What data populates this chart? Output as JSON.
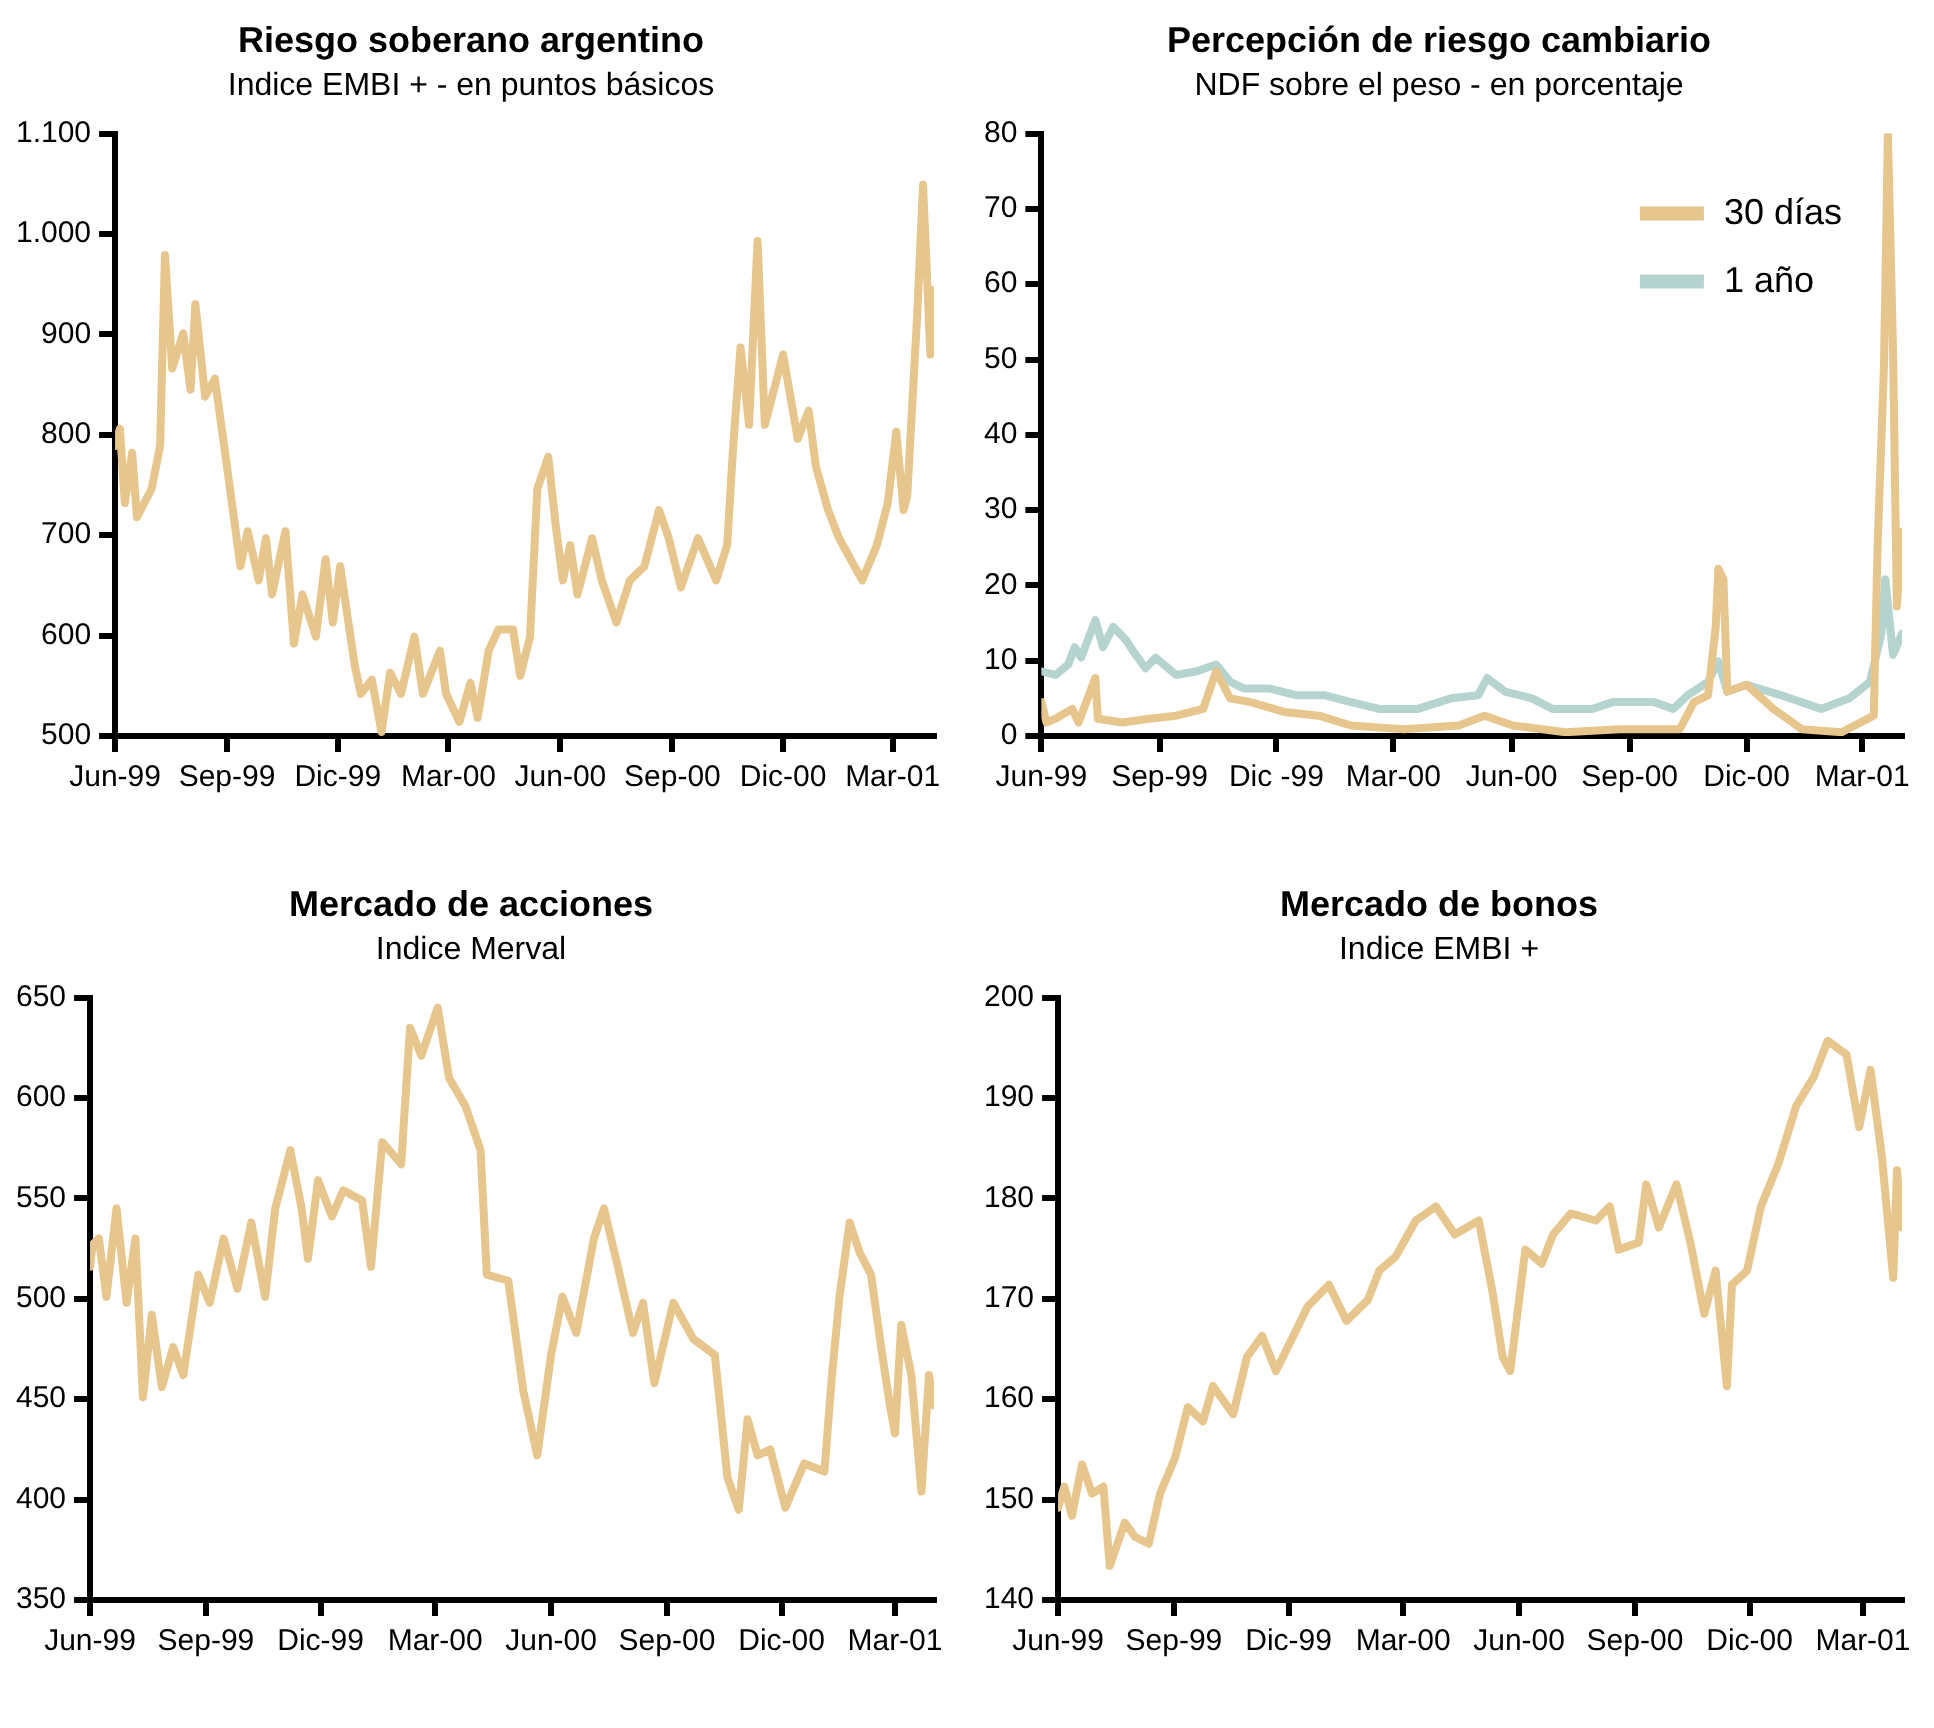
{
  "chart_data": [
    {
      "type": "line",
      "title": "Riesgo soberano argentino",
      "subtitle": "Indice EMBI + - en puntos básicos",
      "xlim": [
        "1999-06-01",
        "2001-04-04"
      ],
      "xticks": [
        {
          "value": "1999-06",
          "label": "Jun-99"
        },
        {
          "value": "1999-09",
          "label": "Sep-99"
        },
        {
          "value": "1999-12",
          "label": "Dic-99"
        },
        {
          "value": "2000-03",
          "label": "Mar-00"
        },
        {
          "value": "2000-06",
          "label": "Jun-00"
        },
        {
          "value": "2000-09",
          "label": "Sep-00"
        },
        {
          "value": "2000-12",
          "label": "Dic-00"
        },
        {
          "value": "2001-03",
          "label": "Mar-01"
        }
      ],
      "ylim": [
        500,
        1100
      ],
      "yticks": [
        500,
        600,
        700,
        800,
        900,
        {
          "value": 1000,
          "label": "1.000"
        },
        {
          "value": 1100,
          "label": "1.100"
        }
      ],
      "series": [
        {
          "color": "#e6c68c",
          "x": [
            "1999-06-01",
            "1999-06-05",
            "1999-06-09",
            "1999-06-15",
            "1999-06-19",
            "1999-07-01",
            "1999-07-08",
            "1999-07-12",
            "1999-07-18",
            "1999-07-27",
            "1999-08-02",
            "1999-08-06",
            "1999-08-14",
            "1999-08-22",
            "1999-09-01",
            "1999-09-12",
            "1999-09-18",
            "1999-09-27",
            "1999-10-03",
            "1999-10-08",
            "1999-10-19",
            "1999-10-26",
            "1999-11-02",
            "1999-11-13",
            "1999-11-21",
            "1999-11-27",
            "1999-12-03",
            "1999-12-15",
            "1999-12-20",
            "1999-12-29",
            "2000-01-06",
            "2000-01-13",
            "2000-01-22",
            "2000-02-02",
            "2000-02-09",
            "2000-02-23",
            "2000-02-28",
            "2000-03-10",
            "2000-03-19",
            "2000-03-25",
            "2000-04-03",
            "2000-04-11",
            "2000-04-23",
            "2000-04-29",
            "2000-05-07",
            "2000-05-13",
            "2000-05-22",
            "2000-05-28",
            "2000-06-03",
            "2000-06-09",
            "2000-06-15",
            "2000-06-27",
            "2000-07-05",
            "2000-07-17",
            "2000-07-28",
            "2000-08-09",
            "2000-08-21",
            "2000-08-29",
            "2000-09-08",
            "2000-09-22",
            "2000-10-07",
            "2000-10-16",
            "2000-10-21",
            "2000-10-27",
            "2000-11-03",
            "2000-11-10",
            "2000-11-16",
            "2000-12-01",
            "2000-12-13",
            "2000-12-22",
            "2000-12-28",
            "2001-01-07",
            "2001-01-16",
            "2001-02-04",
            "2001-02-16",
            "2001-02-25",
            "2001-03-04",
            "2001-03-10",
            "2001-03-13",
            "2001-03-21",
            "2001-03-26",
            "2001-04-01",
            "2001-04-03"
          ],
          "values": [
            789,
            806,
            732,
            782,
            718,
            746,
            789,
            979,
            866,
            901,
            845,
            930,
            838,
            856,
            768,
            669,
            704,
            655,
            697,
            641,
            704,
            592,
            641,
            599,
            676,
            613,
            669,
            570,
            542,
            556,
            504,
            563,
            542,
            599,
            542,
            585,
            542,
            514,
            553,
            518,
            585,
            606,
            606,
            560,
            599,
            746,
            778,
            711,
            655,
            690,
            641,
            697,
            655,
            613,
            655,
            669,
            725,
            697,
            648,
            697,
            655,
            690,
            789,
            887,
            810,
            993,
            810,
            880,
            796,
            824,
            768,
            725,
            697,
            655,
            690,
            732,
            803,
            725,
            739,
            915,
            1049,
            880,
            944
          ]
        }
      ]
    },
    {
      "type": "line",
      "title": "Percepción de riesgo cambiario",
      "subtitle": "NDF sobre el peso - en porcentaje",
      "legend": "top right",
      "xlim": [
        "1999-06-01",
        "2001-04-01"
      ],
      "xticks": [
        {
          "value": "1999-06",
          "label": "Jun-99"
        },
        {
          "value": "1999-09",
          "label": "Sep-99"
        },
        {
          "value": "1999-12",
          "label": "Dic -99"
        },
        {
          "value": "2000-03",
          "label": "Mar-00"
        },
        {
          "value": "2000-06",
          "label": "Jun-00"
        },
        {
          "value": "2000-09",
          "label": "Sep-00"
        },
        {
          "value": "2000-12",
          "label": "Dic-00"
        },
        {
          "value": "2001-03",
          "label": "Mar-01"
        }
      ],
      "ylim": [
        0,
        80
      ],
      "yticks": [
        0,
        10,
        20,
        30,
        40,
        50,
        60,
        70,
        80
      ],
      "series": [
        {
          "name": "30 días",
          "color": "#e6c68c",
          "x": [
            "1999-06-01",
            "1999-06-05",
            "1999-06-12",
            "1999-06-25",
            "1999-06-30",
            "1999-07-13",
            "1999-07-15",
            "1999-08-03",
            "1999-08-24",
            "1999-09-14",
            "1999-10-05",
            "1999-10-15",
            "1999-10-26",
            "1999-11-11",
            "1999-12-07",
            "2000-01-03",
            "2000-01-28",
            "2000-03-09",
            "2000-04-21",
            "2000-05-11",
            "2000-06-02",
            "2000-07-13",
            "2000-08-24",
            "2000-10-10",
            "2000-10-21",
            "2000-11-01",
            "2000-11-07",
            "2000-11-09",
            "2000-11-13",
            "2000-11-16",
            "2000-12-01",
            "2000-12-22",
            "2001-01-13",
            "2001-02-13",
            "2001-03-10",
            "2001-03-13",
            "2001-03-18",
            "2001-03-21",
            "2001-03-25",
            "2001-03-28",
            "2001-04-01"
          ],
          "values": [
            4.5,
            1.8,
            2.3,
            3.6,
            1.8,
            7.7,
            2.3,
            1.8,
            2.3,
            2.7,
            3.6,
            8.6,
            5.0,
            4.5,
            3.2,
            2.7,
            1.4,
            0.9,
            1.4,
            2.7,
            1.4,
            0.5,
            0.9,
            0.9,
            4.5,
            5.4,
            14.5,
            22.2,
            20.8,
            5.9,
            6.8,
            3.6,
            0.9,
            0.5,
            2.7,
            25.3,
            49.3,
            80.0,
            51.5,
            17.2,
            27.1
          ]
        },
        {
          "name": "1 año",
          "color": "#b5d3cf",
          "x": [
            "1999-06-01",
            "1999-06-12",
            "1999-06-22",
            "1999-06-27",
            "1999-07-02",
            "1999-07-13",
            "1999-07-19",
            "1999-07-27",
            "1999-08-06",
            "1999-08-13",
            "1999-08-21",
            "1999-08-29",
            "1999-09-14",
            "1999-09-30",
            "1999-10-15",
            "1999-10-26",
            "1999-11-06",
            "1999-11-26",
            "1999-12-17",
            "2000-01-08",
            "2000-01-28",
            "2000-02-19",
            "2000-03-20",
            "2000-04-15",
            "2000-05-06",
            "2000-05-13",
            "2000-05-27",
            "2000-06-17",
            "2000-07-03",
            "2000-08-03",
            "2000-08-19",
            "2000-09-20",
            "2000-10-05",
            "2000-10-16",
            "2000-11-01",
            "2000-11-09",
            "2000-11-16",
            "2000-12-01",
            "2000-12-28",
            "2001-01-28",
            "2001-02-19",
            "2001-03-07",
            "2001-03-16",
            "2001-03-19",
            "2001-03-25",
            "2001-04-01"
          ],
          "values": [
            8.6,
            8.1,
            9.5,
            11.8,
            10.4,
            15.4,
            11.8,
            14.5,
            12.7,
            10.9,
            9.0,
            10.4,
            8.1,
            8.6,
            9.5,
            7.2,
            6.3,
            6.3,
            5.4,
            5.4,
            4.5,
            3.6,
            3.6,
            5.0,
            5.4,
            7.7,
            5.9,
            5.0,
            3.6,
            3.6,
            4.5,
            4.5,
            3.6,
            5.4,
            7.2,
            9.9,
            5.9,
            6.8,
            5.4,
            3.6,
            5.0,
            7.2,
            13.6,
            20.8,
            10.8,
            13.6
          ]
        }
      ]
    },
    {
      "type": "line",
      "title": "Mercado de acciones",
      "subtitle": "Indice Merval",
      "xlim": [
        "1999-06-01",
        "2001-04-01"
      ],
      "xticks": [
        {
          "value": "1999-06",
          "label": "Jun-99"
        },
        {
          "value": "1999-09",
          "label": "Sep-99"
        },
        {
          "value": "1999-12",
          "label": "Dic-99"
        },
        {
          "value": "2000-03",
          "label": "Mar-00"
        },
        {
          "value": "2000-06",
          "label": "Jun-00"
        },
        {
          "value": "2000-09",
          "label": "Sep-00"
        },
        {
          "value": "2000-12",
          "label": "Dic-00"
        },
        {
          "value": "2001-03",
          "label": "Mar-01"
        }
      ],
      "ylim": [
        350,
        650
      ],
      "yticks": [
        350,
        400,
        450,
        500,
        550,
        600,
        650
      ],
      "series": [
        {
          "color": "#e6c68c",
          "x": [
            "1999-06-01",
            "1999-06-03",
            "1999-06-08",
            "1999-06-14",
            "1999-06-22",
            "1999-06-30",
            "1999-07-07",
            "1999-07-13",
            "1999-07-20",
            "1999-07-28",
            "1999-08-06",
            "1999-08-14",
            "1999-08-26",
            "1999-09-04",
            "1999-09-15",
            "1999-09-26",
            "1999-10-07",
            "1999-10-18",
            "1999-10-26",
            "1999-11-07",
            "1999-11-16",
            "1999-11-21",
            "1999-11-29",
            "1999-12-10",
            "1999-12-19",
            "2000-01-03",
            "2000-01-10",
            "2000-01-19",
            "2000-02-03",
            "2000-02-10",
            "2000-02-19",
            "2000-03-03",
            "2000-03-12",
            "2000-03-25",
            "2000-04-06",
            "2000-04-11",
            "2000-04-28",
            "2000-05-10",
            "2000-05-21",
            "2000-06-01",
            "2000-06-10",
            "2000-06-21",
            "2000-07-05",
            "2000-07-13",
            "2000-07-24",
            "2000-08-05",
            "2000-08-13",
            "2000-08-22",
            "2000-09-06",
            "2000-09-22",
            "2000-10-09",
            "2000-10-19",
            "2000-10-28",
            "2000-11-04",
            "2000-11-12",
            "2000-11-22",
            "2000-12-04",
            "2000-12-19",
            "2001-01-04",
            "2001-01-10",
            "2001-01-16",
            "2001-01-24",
            "2001-02-01",
            "2001-02-10",
            "2001-02-18",
            "2001-02-25",
            "2001-03-01",
            "2001-03-06",
            "2001-03-14",
            "2001-03-22",
            "2001-03-28",
            "2001-04-01"
          ],
          "values": [
            516,
            527,
            530,
            501,
            545,
            498,
            530,
            451,
            492,
            456,
            476,
            462,
            512,
            498,
            530,
            505,
            538,
            501,
            545,
            574,
            545,
            520,
            559,
            541,
            554,
            549,
            516,
            578,
            567,
            635,
            621,
            645,
            610,
            596,
            574,
            512,
            509,
            454,
            422,
            472,
            501,
            483,
            530,
            545,
            516,
            483,
            498,
            458,
            498,
            480,
            472,
            411,
            395,
            440,
            422,
            425,
            396,
            418,
            414,
            462,
            501,
            538,
            523,
            512,
            476,
            447,
            433,
            487,
            462,
            404,
            462,
            447
          ]
        }
      ]
    },
    {
      "type": "line",
      "title": "Mercado de bonos",
      "subtitle": "Indice EMBI +",
      "xlim": [
        "1999-06-01",
        "2001-04-01"
      ],
      "xticks": [
        {
          "value": "1999-06",
          "label": "Jun-99"
        },
        {
          "value": "1999-09",
          "label": "Sep-99"
        },
        {
          "value": "1999-12",
          "label": "Dic-99"
        },
        {
          "value": "2000-03",
          "label": "Mar-00"
        },
        {
          "value": "2000-06",
          "label": "Jun-00"
        },
        {
          "value": "2000-09",
          "label": "Sep-00"
        },
        {
          "value": "2000-12",
          "label": "Dic-00"
        },
        {
          "value": "2001-03",
          "label": "Mar-01"
        }
      ],
      "ylim": [
        140,
        200
      ],
      "yticks": [
        140,
        150,
        160,
        170,
        180,
        190,
        200
      ],
      "series": [
        {
          "color": "#e6c68c",
          "x": [
            "1999-06-01",
            "1999-06-06",
            "1999-06-12",
            "1999-06-20",
            "1999-06-28",
            "1999-07-07",
            "1999-07-12",
            "1999-07-24",
            "1999-08-01",
            "1999-08-12",
            "1999-08-21",
            "1999-09-02",
            "1999-09-12",
            "1999-09-24",
            "1999-10-02",
            "1999-10-18",
            "1999-10-29",
            "1999-11-10",
            "1999-11-21",
            "1999-12-02",
            "1999-12-16",
            "2000-01-02",
            "2000-01-16",
            "2000-02-02",
            "2000-02-11",
            "2000-02-24",
            "2000-03-11",
            "2000-03-27",
            "2000-04-11",
            "2000-04-30",
            "2000-05-11",
            "2000-05-19",
            "2000-05-25",
            "2000-06-06",
            "2000-06-19",
            "2000-06-28",
            "2000-07-12",
            "2000-08-01",
            "2000-08-12",
            "2000-08-19",
            "2000-09-04",
            "2000-09-10",
            "2000-09-20",
            "2000-10-04",
            "2000-10-15",
            "2000-10-26",
            "2000-11-04",
            "2000-11-13",
            "2000-11-17",
            "2000-11-29",
            "2000-12-10",
            "2000-12-24",
            "2001-01-07",
            "2001-01-21",
            "2001-02-01",
            "2001-02-16",
            "2001-02-26",
            "2001-03-07",
            "2001-03-16",
            "2001-03-25",
            "2001-03-28",
            "2001-04-01"
          ],
          "values": [
            149.2,
            151.3,
            148.4,
            153.5,
            150.6,
            151.3,
            143.4,
            147.7,
            146.3,
            145.6,
            150.6,
            154.2,
            159.2,
            157.8,
            161.3,
            158.5,
            164.2,
            166.3,
            162.8,
            165.6,
            169.2,
            171.4,
            167.8,
            169.9,
            172.8,
            174.2,
            177.8,
            179.2,
            176.4,
            177.8,
            170.6,
            164.2,
            162.8,
            174.9,
            173.5,
            176.4,
            178.5,
            177.8,
            179.2,
            174.9,
            175.6,
            181.4,
            177.1,
            181.4,
            175.6,
            168.5,
            172.8,
            161.3,
            171.4,
            172.8,
            179.2,
            183.5,
            189.2,
            192.1,
            195.7,
            194.3,
            187.1,
            192.8,
            184.2,
            172.1,
            182.8,
            177.1
          ]
        }
      ]
    }
  ]
}
